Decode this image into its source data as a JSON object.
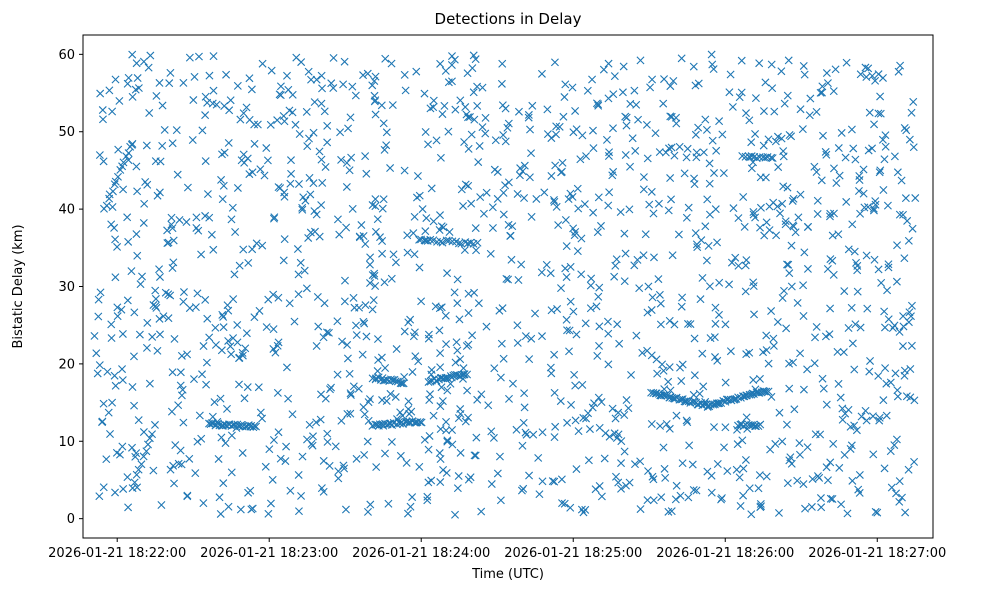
{
  "chart_data": {
    "type": "scatter",
    "title": "Detections in Delay",
    "xlabel": "Time (UTC)",
    "ylabel": "Bistatic Delay (km)",
    "marker": "x",
    "marker_color": "#1f77b4",
    "x_unit": "seconds since 2026-01-21 18:21:00 UTC",
    "xlim": [
      46.5,
      382
    ],
    "ylim": [
      -2.5,
      62.5
    ],
    "x_ticks": [
      {
        "value": 60,
        "label": "2026-01-21 18:22:00"
      },
      {
        "value": 120,
        "label": "2026-01-21 18:23:00"
      },
      {
        "value": 180,
        "label": "2026-01-21 18:24:00"
      },
      {
        "value": 240,
        "label": "2026-01-21 18:25:00"
      },
      {
        "value": 300,
        "label": "2026-01-21 18:26:00"
      },
      {
        "value": 360,
        "label": "2026-01-21 18:27:00"
      }
    ],
    "y_ticks": [
      {
        "value": 0,
        "label": "0"
      },
      {
        "value": 10,
        "label": "10"
      },
      {
        "value": 20,
        "label": "20"
      },
      {
        "value": 30,
        "label": "30"
      },
      {
        "value": 40,
        "label": "40"
      },
      {
        "value": 50,
        "label": "50"
      },
      {
        "value": 60,
        "label": "60"
      }
    ],
    "series": [
      {
        "name": "detections",
        "data_range": {
          "x": [
            51,
            375
          ],
          "y": [
            0.5,
            60
          ]
        },
        "random_detections_count": 1500,
        "structured_tracks": [
          {
            "x_start": 96,
            "x_end": 115,
            "y_start": 12.2,
            "y_end": 11.9,
            "points": 30
          },
          {
            "x_start": 161,
            "x_end": 173,
            "y_start": 18.2,
            "y_end": 17.6,
            "points": 18
          },
          {
            "x_start": 161,
            "x_end": 180,
            "y_start": 12.0,
            "y_end": 12.6,
            "points": 28
          },
          {
            "x_start": 183,
            "x_end": 198,
            "y_start": 17.8,
            "y_end": 18.7,
            "points": 24
          },
          {
            "x_start": 179,
            "x_end": 202,
            "y_start": 36.0,
            "y_end": 35.6,
            "points": 20
          },
          {
            "x_start": 271,
            "x_end": 293,
            "y_start": 16.2,
            "y_end": 14.6,
            "points": 34
          },
          {
            "x_start": 293,
            "x_end": 317,
            "y_start": 14.6,
            "y_end": 16.6,
            "points": 36
          },
          {
            "x_start": 305,
            "x_end": 314,
            "y_start": 12.1,
            "y_end": 12.1,
            "points": 12
          },
          {
            "x_start": 307,
            "x_end": 319,
            "y_start": 46.7,
            "y_end": 46.7,
            "points": 12
          },
          {
            "x_start": 55,
            "x_end": 65,
            "y_start": 40.0,
            "y_end": 48.0,
            "points": 14
          },
          {
            "x_start": 66,
            "x_end": 74,
            "y_start": 4.0,
            "y_end": 11.0,
            "points": 10
          }
        ]
      }
    ]
  }
}
